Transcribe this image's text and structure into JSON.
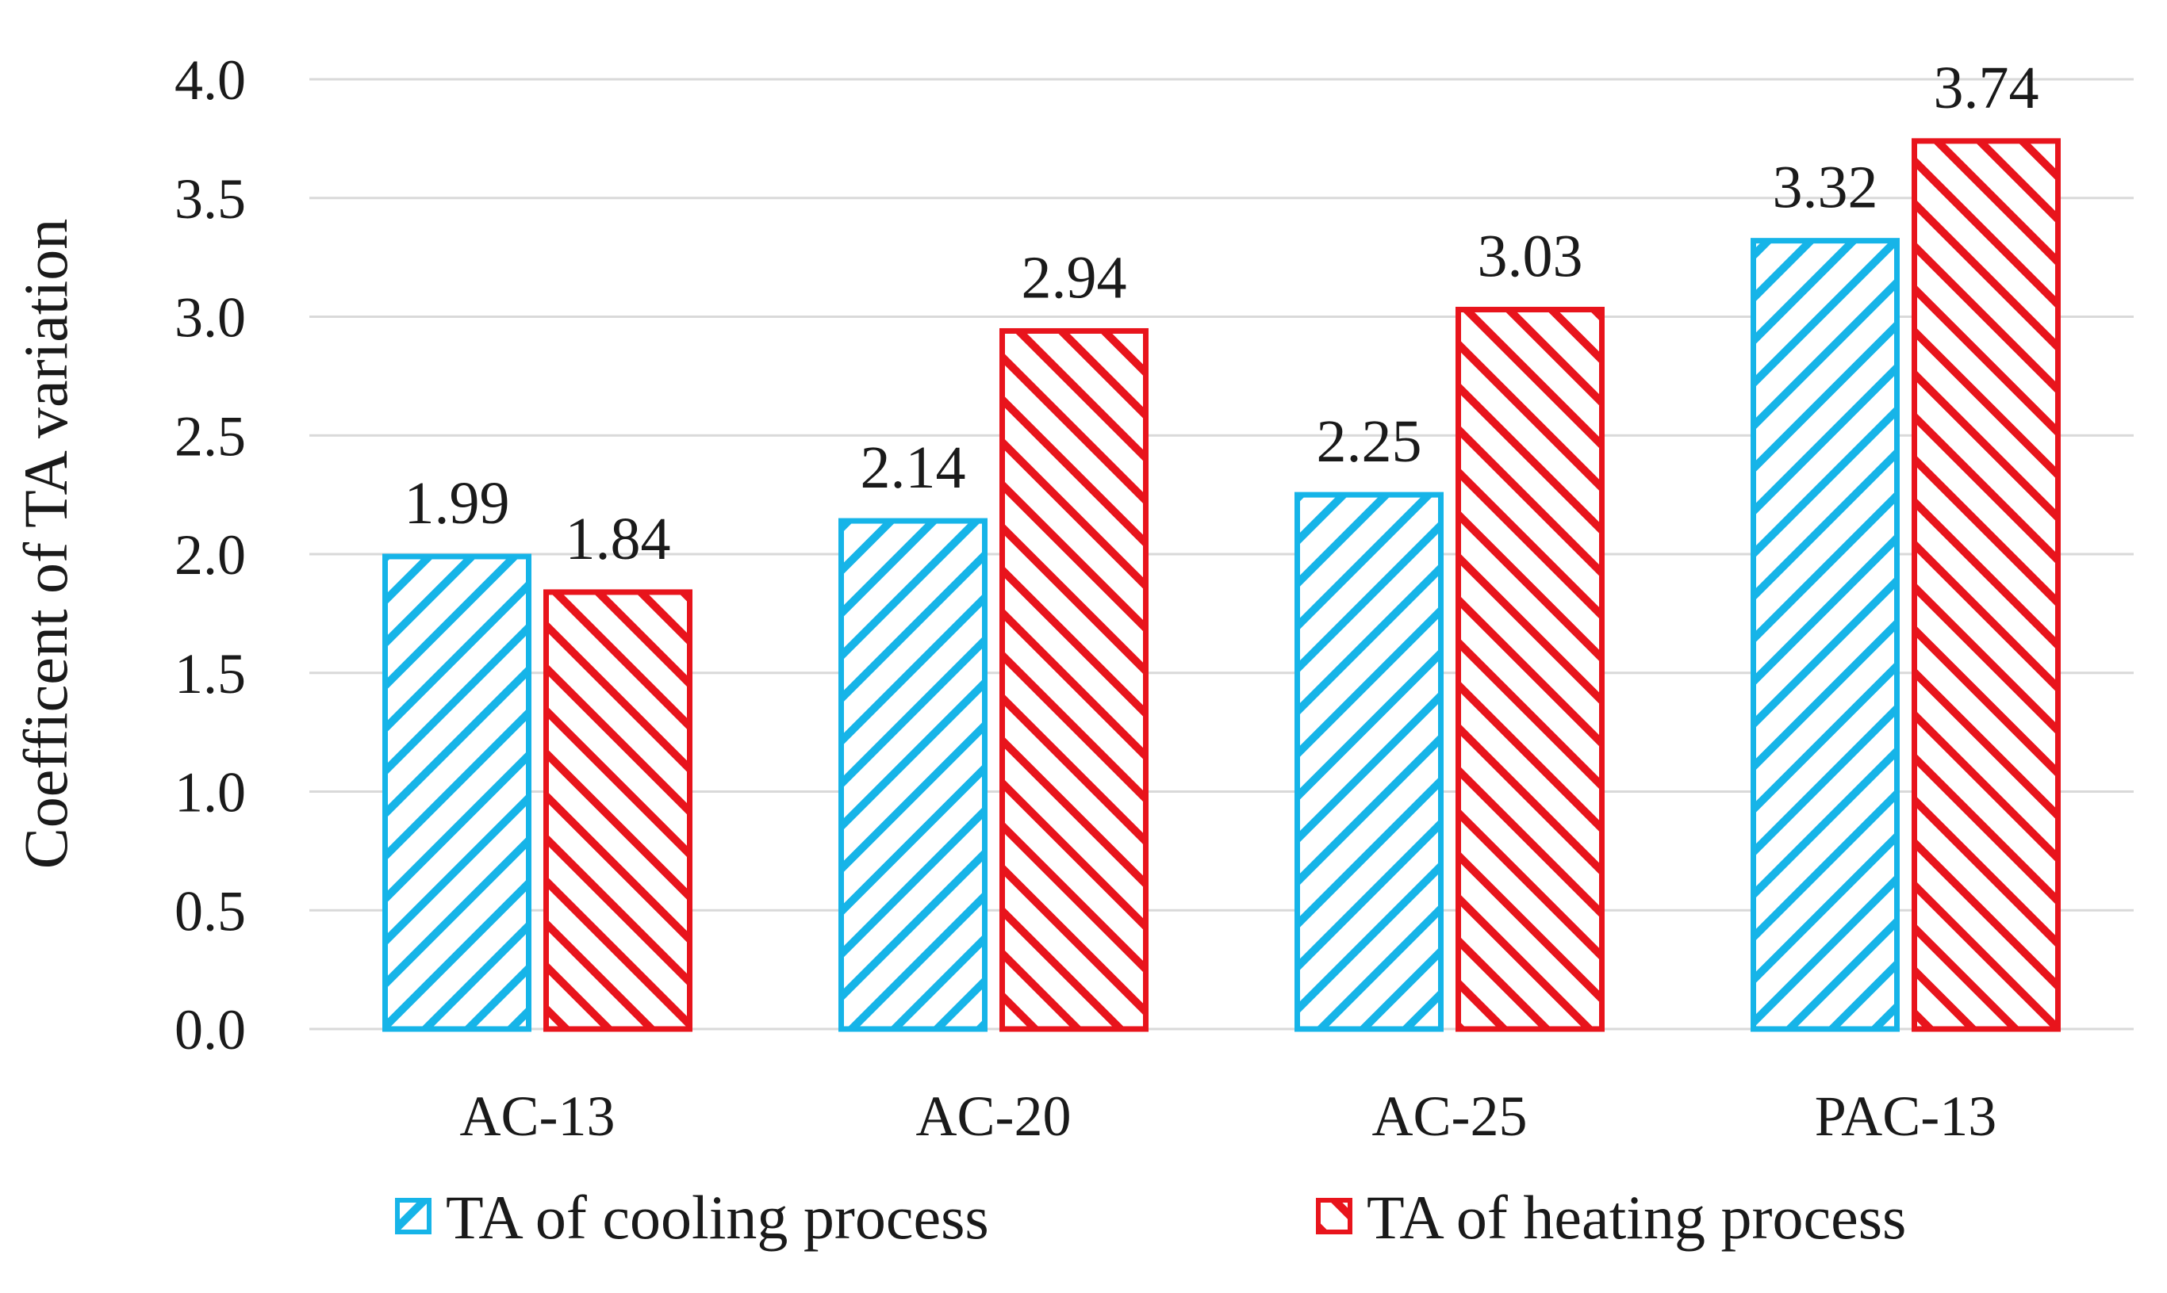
{
  "chart_data": {
    "type": "bar",
    "title": "",
    "xlabel": "",
    "ylabel": "Coefficent of TA variation",
    "categories": [
      "AC-13",
      "AC-20",
      "AC-25",
      "PAC-13"
    ],
    "series": [
      {
        "name": "TA of cooling process",
        "values": [
          1.99,
          2.14,
          2.25,
          3.32
        ],
        "value_labels": [
          "1.99",
          "2.14",
          "2.25",
          "3.32"
        ],
        "color": "#16b4e8",
        "pattern": "diagonal-down"
      },
      {
        "name": "TA of heating process",
        "values": [
          1.84,
          2.94,
          3.03,
          3.74
        ],
        "value_labels": [
          "1.84",
          "2.94",
          "3.03",
          "3.74"
        ],
        "color": "#e8141c",
        "pattern": "diagonal-up"
      }
    ],
    "ylim": [
      0,
      4.0
    ],
    "yticks": [
      0,
      0.5,
      1.0,
      1.5,
      2.0,
      2.5,
      3.0,
      3.5,
      4.0
    ],
    "ytick_labels": [
      "0.0",
      "0.5",
      "1.0",
      "1.5",
      "2.0",
      "2.5",
      "3.0",
      "3.5",
      "4.0"
    ],
    "grid": true,
    "legend_position": "bottom"
  }
}
